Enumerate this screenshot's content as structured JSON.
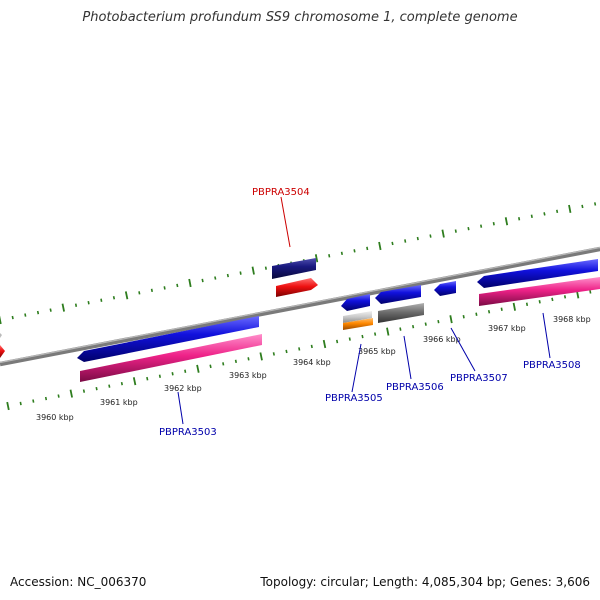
{
  "title": "Photobacterium profundum SS9 chromosome 1, complete genome",
  "footer": {
    "accession": "Accession: NC_006370",
    "summary": "Topology: circular; Length: 4,085,304 bp; Genes: 3,606"
  },
  "colors": {
    "backbone": "#7a7a7a",
    "ticks": "#2e7d1e",
    "highlight_label": "#cc0000",
    "gene_label": "#0000aa",
    "blue_gene": "#1111dd",
    "pink_gene": "#ee2288",
    "navy_gene": "#1a1a80",
    "red_gene": "#ee1111",
    "gray_gene": "#6e6e6e",
    "light_gene": "#c8c8c8",
    "orange_gene": "#ff8800"
  },
  "kbp_labels": [
    "3960 kbp",
    "3961 kbp",
    "3962 kbp",
    "3963 kbp",
    "3964 kbp",
    "3965 kbp",
    "3966 kbp",
    "3967 kbp",
    "3968 kbp"
  ],
  "gene_labels": {
    "g3503": "PBPRA3503",
    "g3504": "PBPRA3504",
    "g3505": "PBPRA3505",
    "g3506": "PBPRA3506",
    "g3507": "PBPRA3507",
    "g3508": "PBPRA3508"
  }
}
